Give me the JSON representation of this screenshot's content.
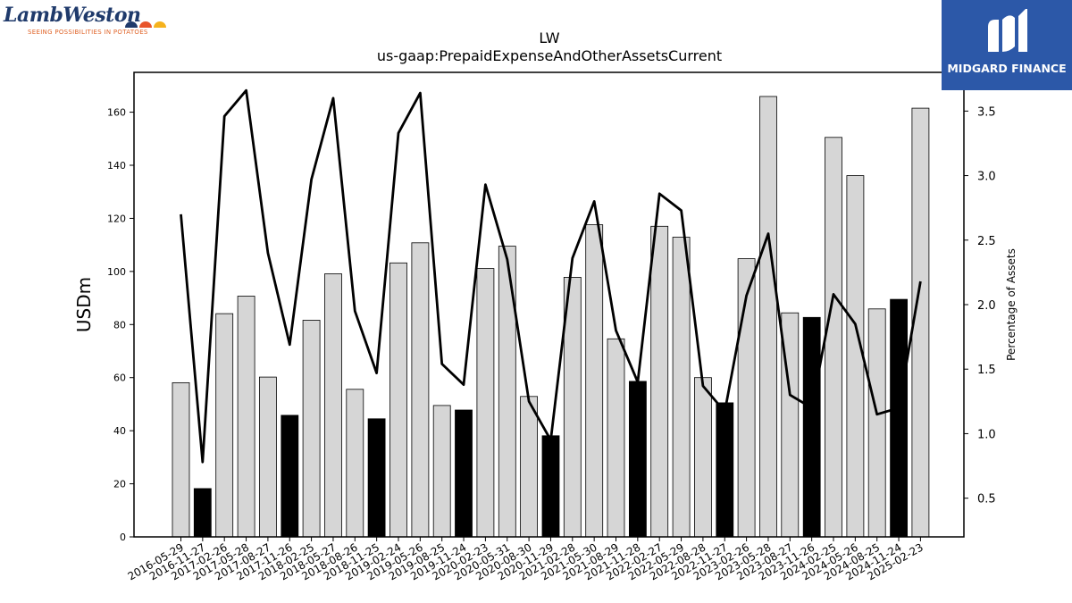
{
  "logos": {
    "left": {
      "name": "LambWeston",
      "tagline": "SEEING POSSIBILITIES IN POTATOES"
    },
    "right": {
      "name": "MIDGARD FINANCE"
    }
  },
  "chart_data": {
    "type": "bar",
    "title": "LW",
    "subtitle": "us-gaap:PrepaidExpenseAndOtherAssetsCurrent",
    "ylabel": "USDm",
    "y2label": "Percentage of Assets",
    "ylim": [
      0,
      175
    ],
    "y2lim": [
      0.2,
      3.8
    ],
    "yticks": [
      0,
      20,
      40,
      60,
      80,
      100,
      120,
      140,
      160
    ],
    "y2ticks": [
      0.5,
      1.0,
      1.5,
      2.0,
      2.5,
      3.0,
      3.5
    ],
    "grid": false,
    "categories": [
      "2016-05-29",
      "2016-11-27",
      "2017-02-26",
      "2017-05-28",
      "2017-08-27",
      "2017-11-26",
      "2018-02-25",
      "2018-05-27",
      "2018-08-26",
      "2018-11-25",
      "2019-02-24",
      "2019-05-26",
      "2019-08-25",
      "2019-11-24",
      "2020-02-23",
      "2020-05-31",
      "2020-08-30",
      "2020-11-29",
      "2021-02-28",
      "2021-05-30",
      "2021-08-29",
      "2021-11-28",
      "2022-02-27",
      "2022-05-29",
      "2022-08-28",
      "2022-11-27",
      "2023-02-26",
      "2023-05-28",
      "2023-08-27",
      "2023-11-26",
      "2024-02-25",
      "2024-05-26",
      "2024-08-25",
      "2024-11-24",
      "2025-02-23"
    ],
    "series": [
      {
        "kind": "bar",
        "axis": "left",
        "values": [
          58.1,
          18.2,
          84.1,
          90.7,
          60.2,
          45.8,
          81.6,
          99.1,
          55.6,
          44.5,
          103.2,
          110.8,
          49.5,
          47.8,
          101.1,
          109.5,
          52.9,
          38.1,
          97.8,
          117.6,
          74.6,
          58.6,
          117.0,
          112.9,
          60.0,
          50.5,
          104.8,
          165.9,
          84.4,
          82.7,
          150.5,
          136.1,
          85.9,
          89.5,
          161.5
        ],
        "highlight": [
          false,
          true,
          false,
          false,
          false,
          true,
          false,
          false,
          false,
          true,
          false,
          false,
          false,
          true,
          false,
          false,
          false,
          true,
          false,
          false,
          false,
          true,
          false,
          false,
          false,
          true,
          false,
          false,
          false,
          true,
          false,
          false,
          false,
          true,
          false
        ]
      },
      {
        "kind": "line",
        "axis": "right",
        "values": [
          2.7,
          0.78,
          3.46,
          3.66,
          2.4,
          1.69,
          2.97,
          3.6,
          1.95,
          1.47,
          3.33,
          3.64,
          1.54,
          1.38,
          2.93,
          2.35,
          1.25,
          0.95,
          2.36,
          2.8,
          1.8,
          1.4,
          2.86,
          2.73,
          1.37,
          1.17,
          2.07,
          2.55,
          1.3,
          1.2,
          2.08,
          1.85,
          1.15,
          1.2,
          2.18
        ]
      }
    ]
  },
  "colors": {
    "bar": "#d6d6d6",
    "bar_highlight": "#000000",
    "bar_edge": "#000000",
    "line": "#000000",
    "logo_right_bg": "#2c58a8",
    "logo_left_text": "#1f3a6b",
    "logo_left_tagline": "#e0662b",
    "logo_dot_1": "#1f3a6b",
    "logo_dot_2": "#e8542a",
    "logo_dot_3": "#f5b21d"
  }
}
